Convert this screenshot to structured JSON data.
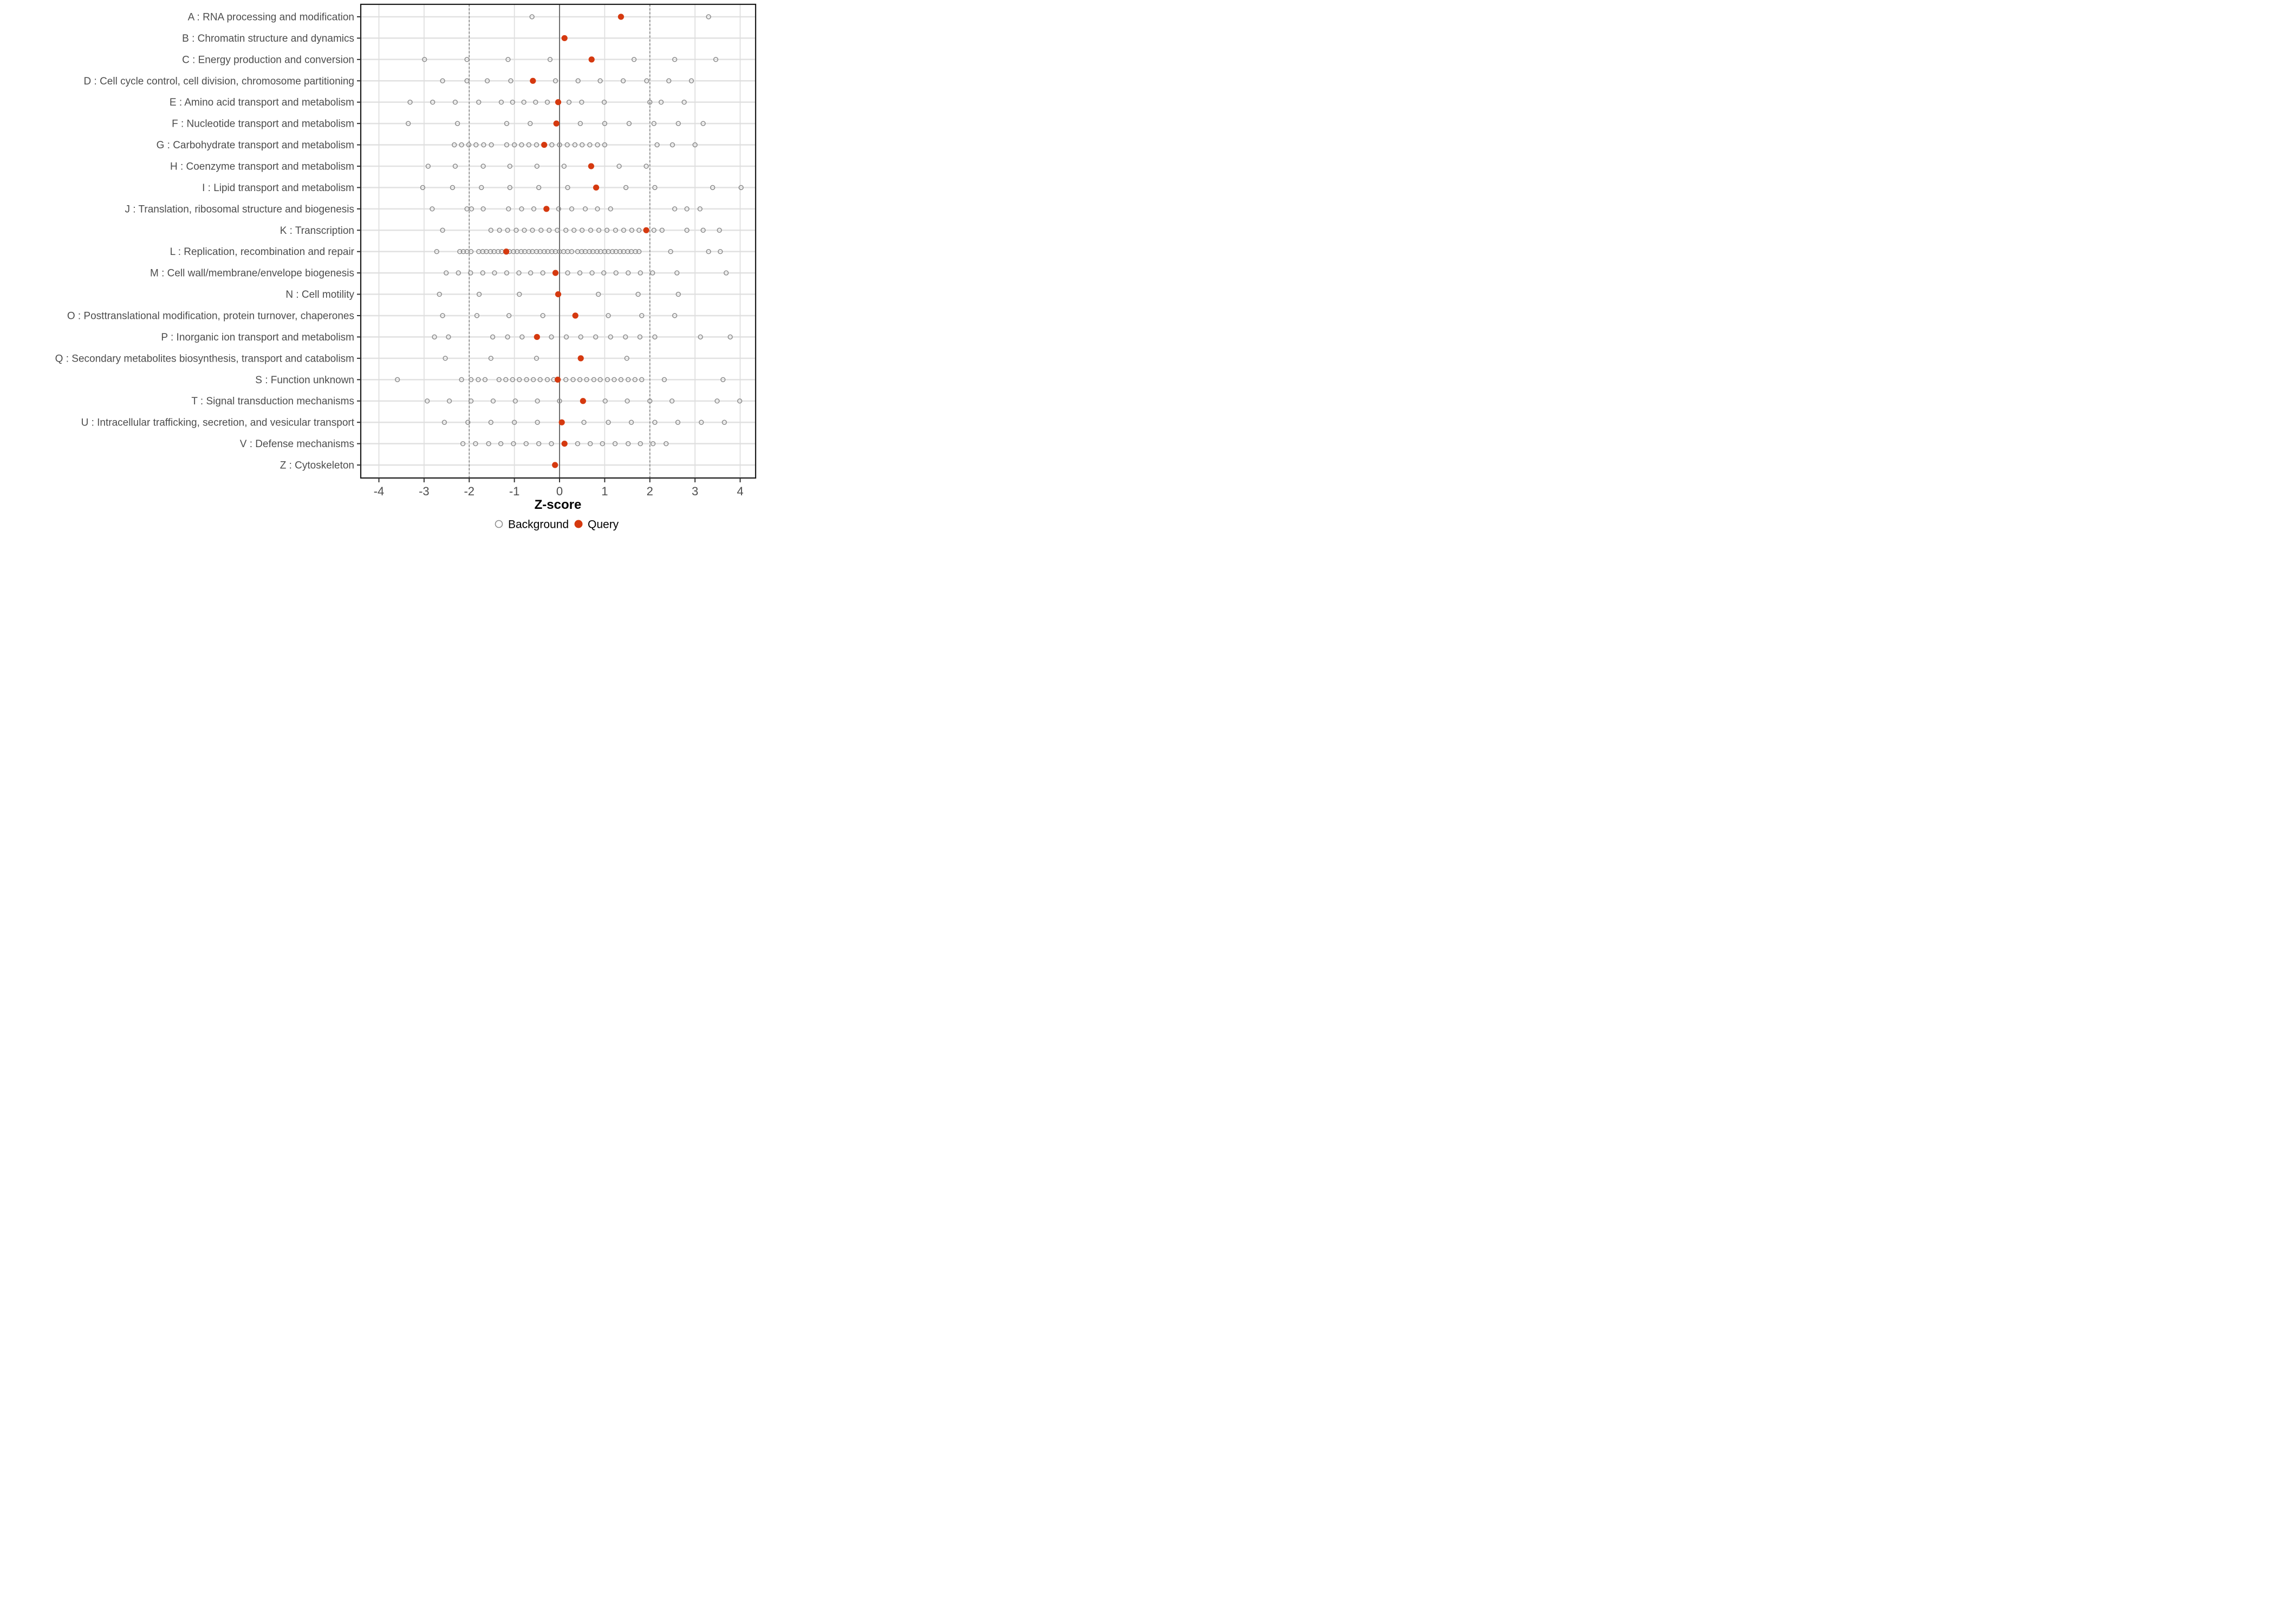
{
  "chart_data": {
    "type": "scatter",
    "title": "",
    "xlabel": "Z-score",
    "ylabel": "",
    "xlim": [
      -4.4,
      4.35
    ],
    "xticks": [
      -4,
      -3,
      -2,
      -1,
      0,
      1,
      2,
      3,
      4
    ],
    "grid": true,
    "legend_position": "bottom",
    "reference_lines": {
      "solid_at": 0,
      "dashed_at": [
        -2,
        2
      ]
    },
    "colors": {
      "background_marker": "#8b8b8b",
      "query_marker": "#d5390f",
      "grid_major": "#dedede",
      "grid_row": "#e2e2e2",
      "reference": "#6f6f6f",
      "dashed_reference": "#8a8a8a",
      "panel_border": "#1a1a1a",
      "axis_text": "#4d4d4d"
    },
    "legend": [
      {
        "label": "Background",
        "marker": "open-circle"
      },
      {
        "label": "Query",
        "marker": "filled-circle"
      }
    ],
    "rows": [
      {
        "label": "A : RNA processing and modification",
        "background": [
          -0.61,
          3.3
        ],
        "query": 1.36
      },
      {
        "label": "B : Chromatin structure and dynamics",
        "background": [],
        "query": 0.11
      },
      {
        "label": "C : Energy production and conversion",
        "background": [
          -2.99,
          -2.05,
          -1.14,
          -0.21,
          1.65,
          2.55,
          3.46
        ],
        "query": 0.71
      },
      {
        "label": "D : Cell cycle control, cell division, chromosome partitioning",
        "background": [
          -2.59,
          -2.05,
          -1.6,
          -1.08,
          -0.09,
          0.41,
          0.9,
          1.41,
          1.93,
          2.42,
          2.92
        ],
        "query": -0.59
      },
      {
        "label": "E : Amino acid transport and metabolism",
        "background": [
          -3.31,
          -2.81,
          -2.31,
          -1.79,
          -1.29,
          -1.04,
          -0.79,
          -0.53,
          -0.27,
          0.21,
          0.49,
          0.99,
          2.0,
          2.25,
          2.76
        ],
        "query": -0.03
      },
      {
        "label": "F : Nucleotide transport and metabolism",
        "background": [
          -3.35,
          -2.26,
          -1.17,
          -0.65,
          0.46,
          1.0,
          1.54,
          2.09,
          2.63,
          3.18
        ],
        "query": -0.07
      },
      {
        "label": "G : Carbohydrate transport and metabolism",
        "background": [
          -2.33,
          -2.17,
          -2.01,
          -1.85,
          -1.68,
          -1.51,
          -1.17,
          -1.0,
          -0.84,
          -0.68,
          -0.51,
          -0.17,
          0.0,
          0.17,
          0.34,
          0.5,
          0.67,
          0.84,
          1.0,
          2.16,
          2.5,
          3.0
        ],
        "query": -0.34
      },
      {
        "label": "H : Coenzyme transport and metabolism",
        "background": [
          -2.91,
          -2.31,
          -1.69,
          -1.1,
          -0.5,
          0.1,
          1.32,
          1.92
        ],
        "query": 0.7
      },
      {
        "label": "I : Lipid transport and metabolism",
        "background": [
          -3.03,
          -2.37,
          -1.73,
          -1.1,
          -0.46,
          0.18,
          1.47,
          2.11,
          3.39,
          4.02
        ],
        "query": 0.81
      },
      {
        "label": "J : Translation, ribosomal structure and biogenesis",
        "background": [
          -2.82,
          -2.05,
          -1.95,
          -1.69,
          -1.13,
          -0.84,
          -0.57,
          -0.02,
          0.27,
          0.57,
          0.84,
          1.13,
          2.55,
          2.82,
          3.11
        ],
        "query": -0.29
      },
      {
        "label": "K : Transcription",
        "background": [
          -2.59,
          -1.52,
          -1.33,
          -1.15,
          -0.96,
          -0.78,
          -0.6,
          -0.41,
          -0.23,
          -0.05,
          0.14,
          0.32,
          0.5,
          0.69,
          0.87,
          1.05,
          1.24,
          1.42,
          1.6,
          1.76,
          2.09,
          2.27,
          2.82,
          3.18,
          3.54
        ],
        "query": 1.92
      },
      {
        "label": "L : Replication, recombination and repair",
        "background": [
          -2.72,
          -2.21,
          -2.13,
          -2.05,
          -1.96,
          -1.79,
          -1.7,
          -1.62,
          -1.53,
          -1.45,
          -1.36,
          -1.28,
          -1.19,
          -1.11,
          -1.02,
          -0.94,
          -0.85,
          -0.77,
          -0.68,
          -0.6,
          -0.51,
          -0.43,
          -0.34,
          -0.26,
          -0.17,
          -0.09,
          0.0,
          0.09,
          0.18,
          0.27,
          0.4,
          0.49,
          0.57,
          0.66,
          0.74,
          0.83,
          0.91,
          1.0,
          1.08,
          1.17,
          1.25,
          1.34,
          1.42,
          1.51,
          1.59,
          1.68,
          1.76,
          2.46,
          3.3,
          3.56
        ],
        "query": -1.18
      },
      {
        "label": "M : Cell wall/membrane/envelope biogenesis",
        "background": [
          -2.51,
          -2.24,
          -1.97,
          -1.7,
          -1.44,
          -1.17,
          -0.9,
          -0.64,
          -0.37,
          0.18,
          0.45,
          0.72,
          0.98,
          1.25,
          1.52,
          1.79,
          2.06,
          2.6,
          3.69
        ],
        "query": -0.09
      },
      {
        "label": "N : Cell motility",
        "background": [
          -2.66,
          -1.78,
          -0.89,
          0.86,
          1.74,
          2.63
        ],
        "query": -0.03
      },
      {
        "label": "O : Posttranslational modification, protein turnover, chaperones",
        "background": [
          -2.59,
          -1.83,
          -1.12,
          -0.37,
          1.08,
          1.82,
          2.55
        ],
        "query": 0.35
      },
      {
        "label": "P : Inorganic ion transport and metabolism",
        "background": [
          -2.77,
          -2.46,
          -1.48,
          -1.15,
          -0.83,
          -0.18,
          0.15,
          0.47,
          0.8,
          1.13,
          1.46,
          1.78,
          2.11,
          3.12,
          3.78
        ],
        "query": -0.5
      },
      {
        "label": "Q : Secondary metabolites biosynthesis, transport and catabolism",
        "background": [
          -2.53,
          -1.52,
          -0.51,
          1.49
        ],
        "query": 0.47
      },
      {
        "label": "S : Function unknown",
        "background": [
          -3.59,
          -2.17,
          -1.96,
          -1.8,
          -1.65,
          -1.34,
          -1.19,
          -1.04,
          -0.89,
          -0.73,
          -0.58,
          -0.43,
          -0.27,
          -0.13,
          0.14,
          0.3,
          0.45,
          0.6,
          0.76,
          0.9,
          1.06,
          1.21,
          1.36,
          1.52,
          1.67,
          1.82,
          2.32,
          3.62
        ],
        "query": -0.04
      },
      {
        "label": "T : Signal transduction mechanisms",
        "background": [
          -2.93,
          -2.44,
          -1.96,
          -1.47,
          -0.98,
          -0.49,
          0.0,
          1.01,
          1.5,
          2.0,
          2.49,
          3.49,
          3.99
        ],
        "query": 0.52
      },
      {
        "label": "U : Intracellular trafficking, secretion, and vesicular transport",
        "background": [
          -2.55,
          -2.03,
          -1.52,
          -1.0,
          -0.49,
          0.54,
          1.08,
          1.59,
          2.11,
          2.62,
          3.14,
          3.65
        ],
        "query": 0.05
      },
      {
        "label": "V : Defense mechanisms",
        "background": [
          -2.14,
          -1.86,
          -1.57,
          -1.3,
          -1.02,
          -0.74,
          -0.46,
          -0.18,
          0.4,
          0.68,
          0.95,
          1.23,
          1.52,
          1.79,
          2.07,
          2.36
        ],
        "query": 0.11
      },
      {
        "label": "Z : Cytoskeleton",
        "background": [],
        "query": -0.1
      }
    ]
  }
}
